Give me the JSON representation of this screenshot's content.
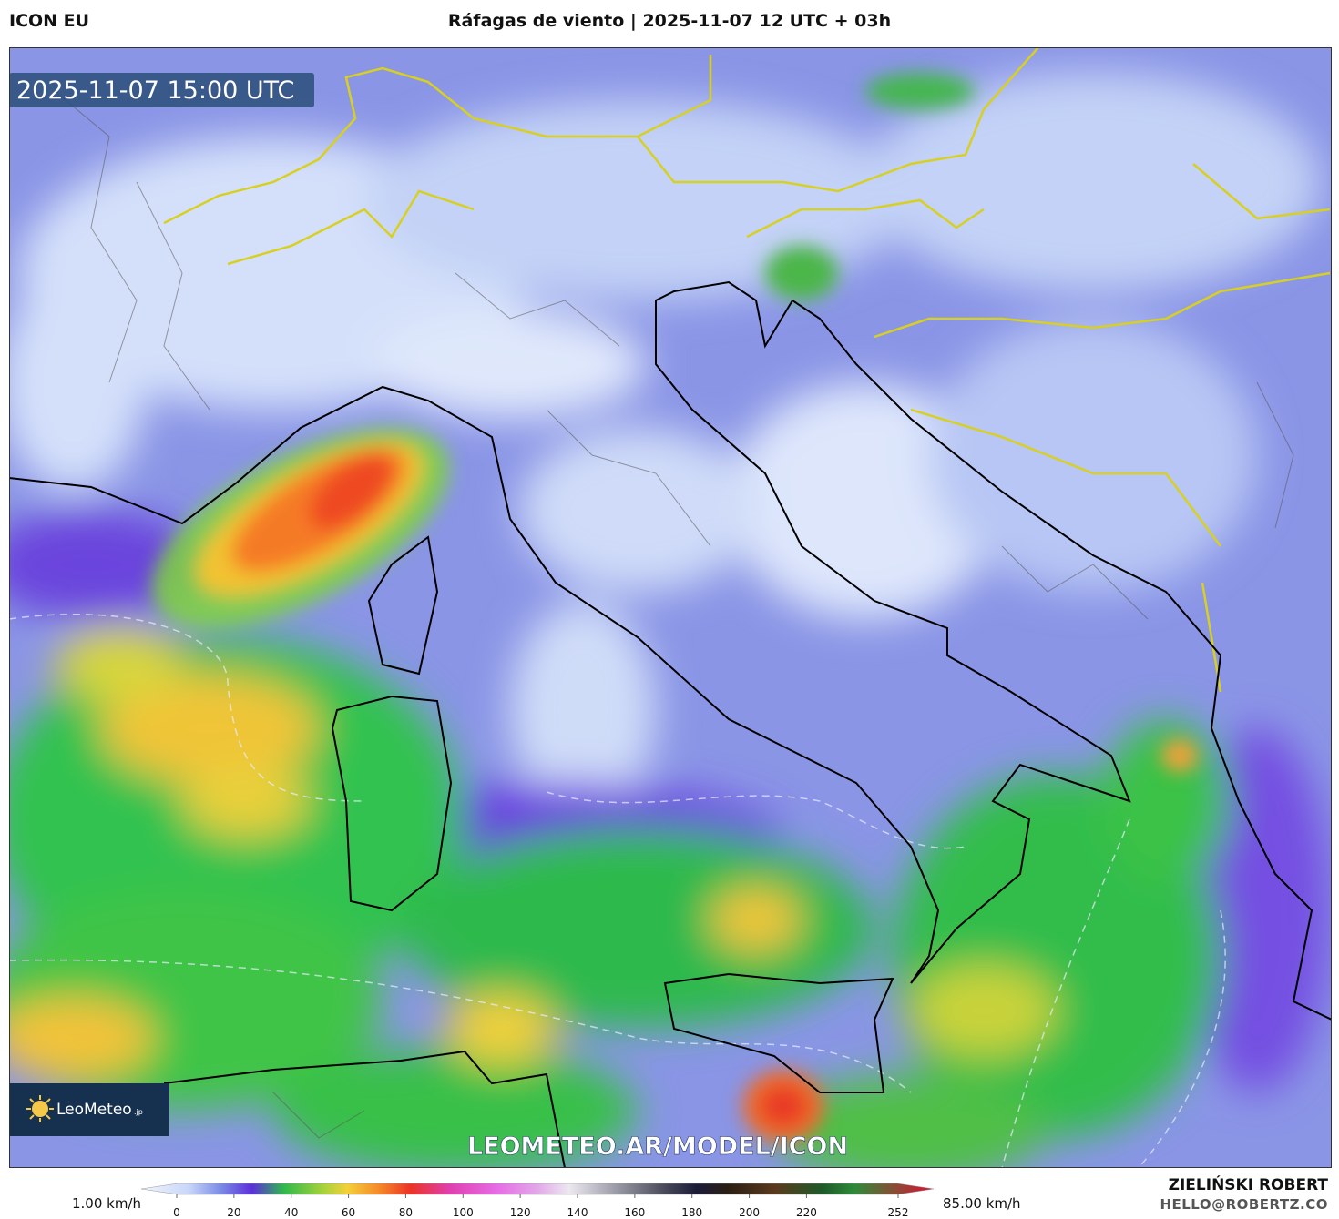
{
  "header": {
    "model": "ICON EU",
    "title": "Ráfagas de viento | 2025-11-07 12 UTC + 03h"
  },
  "map": {
    "timestamp": "2025-11-07 15:00 UTC",
    "watermark": "LEOMETEO.AR/MODEL/ICON",
    "logo": {
      "name": "LeoMeteo",
      "suffix": ".jp"
    }
  },
  "colorbar": {
    "min_label": "1.00 km/h",
    "max_label": "85.00 km/h",
    "ticks": [
      0,
      20,
      40,
      60,
      80,
      100,
      120,
      140,
      160,
      180,
      200,
      220,
      252
    ]
  },
  "credits": {
    "author": "ZIELIŃSKI ROBERT",
    "email": "HELLO@ROBERTZ.CO"
  }
}
